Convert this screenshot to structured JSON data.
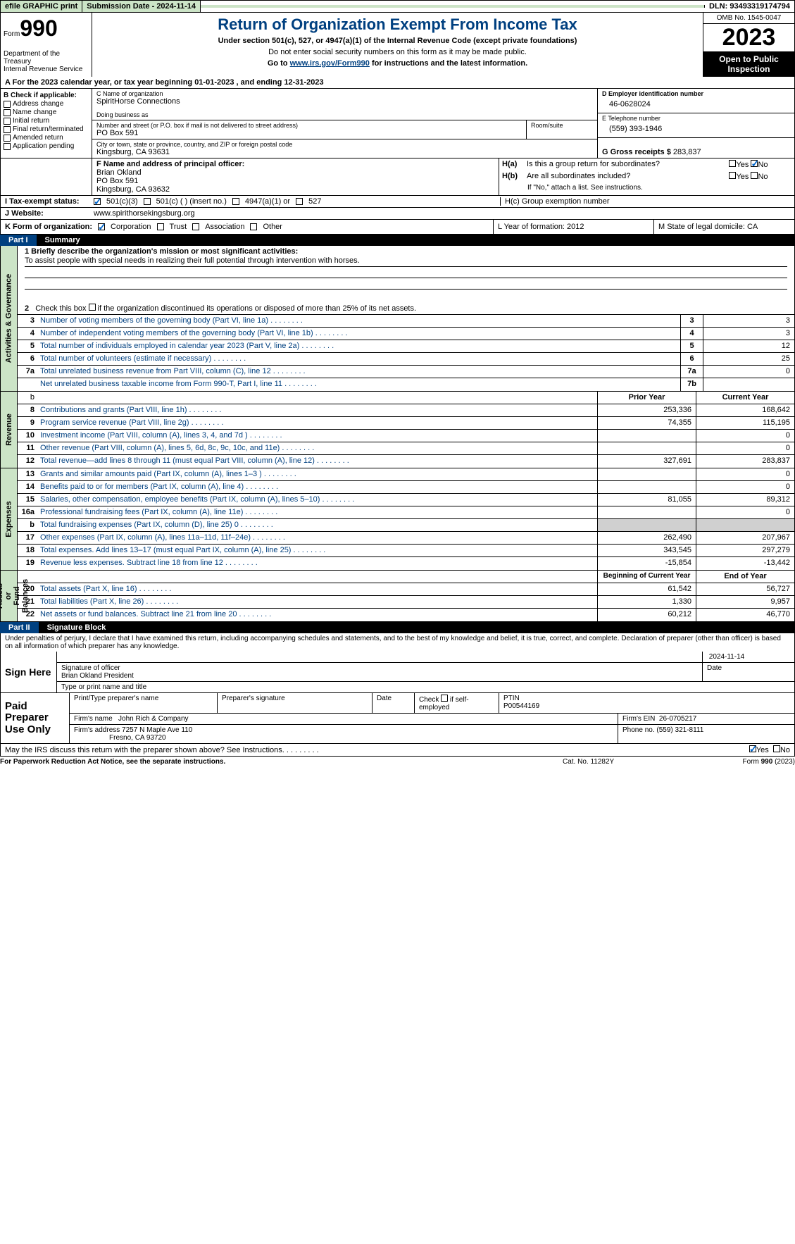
{
  "topbar": {
    "efile": "efile GRAPHIC print",
    "submission": "Submission Date - 2024-11-14",
    "dln": "DLN: 93493319174794"
  },
  "header": {
    "form_label": "Form",
    "form_no": "990",
    "dept": "Department of the Treasury\nInternal Revenue Service",
    "title": "Return of Organization Exempt From Income Tax",
    "sub1": "Under section 501(c), 527, or 4947(a)(1) of the Internal Revenue Code (except private foundations)",
    "sub2": "Do not enter social security numbers on this form as it may be made public.",
    "sub3_pre": "Go to ",
    "sub3_link": "www.irs.gov/Form990",
    "sub3_post": " for instructions and the latest information.",
    "omb": "OMB No. 1545-0047",
    "year": "2023",
    "open": "Open to Public Inspection"
  },
  "rowA": "A For the 2023 calendar year, or tax year beginning 01-01-2023    , and ending 12-31-2023",
  "colB": {
    "hdr": "B Check if applicable:",
    "opts": [
      "Address change",
      "Name change",
      "Initial return",
      "Final return/terminated",
      "Amended return",
      "Application pending"
    ]
  },
  "boxC": {
    "name_lbl": "C Name of organization",
    "name": "SpiritHorse Connections",
    "dba_lbl": "Doing business as",
    "addr_lbl": "Number and street (or P.O. box if mail is not delivered to street address)",
    "room_lbl": "Room/suite",
    "addr": "PO Box 591",
    "city_lbl": "City or town, state or province, country, and ZIP or foreign postal code",
    "city": "Kingsburg, CA   93631"
  },
  "boxD": {
    "lbl": "D Employer identification number",
    "val": "46-0628024"
  },
  "boxE": {
    "lbl": "E Telephone number",
    "val": "(559) 393-1946"
  },
  "boxG": {
    "lbl": "G Gross receipts $",
    "val": "283,837"
  },
  "officer": {
    "f_lbl": "F  Name and address of principal officer:",
    "f_val": "Brian Okland\nPO Box 591\nKingsburg, CA  93632",
    "ha": "H(a)  Is this a group return for subordinates?",
    "hb": "H(b)  Are all subordinates included?",
    "hb_note": "If \"No,\" attach a list. See instructions.",
    "hc": "H(c)  Group exemption number"
  },
  "taxexempt": {
    "lbl": "I  Tax-exempt status:",
    "opt1": "501(c)(3)",
    "opt2": "501(c) (  ) (insert no.)",
    "opt3": "4947(a)(1) or",
    "opt4": "527"
  },
  "website": {
    "lbl": "J  Website:",
    "val": "www.spirithorsekingsburg.org"
  },
  "rowK": {
    "lbl": "K Form of organization:",
    "opts": [
      "Corporation",
      "Trust",
      "Association",
      "Other"
    ],
    "L": "L Year of formation: 2012",
    "M": "M State of legal domicile: CA"
  },
  "part1": {
    "num": "Part I",
    "title": "Summary"
  },
  "mission": {
    "lbl": "1   Briefly describe the organization's mission or most significant activities:",
    "text": "To assist people with special needs in realizing their full potential through intervention with horses."
  },
  "line2": "2   Check this box      if the organization discontinued its operations or disposed of more than 25% of its net assets.",
  "gov_rows": [
    {
      "n": "3",
      "d": "Number of voting members of the governing body (Part VI, line 1a)",
      "bn": "3",
      "v": "3"
    },
    {
      "n": "4",
      "d": "Number of independent voting members of the governing body (Part VI, line 1b)",
      "bn": "4",
      "v": "3"
    },
    {
      "n": "5",
      "d": "Total number of individuals employed in calendar year 2023 (Part V, line 2a)",
      "bn": "5",
      "v": "12"
    },
    {
      "n": "6",
      "d": "Total number of volunteers (estimate if necessary)",
      "bn": "6",
      "v": "25"
    },
    {
      "n": "7a",
      "d": "Total unrelated business revenue from Part VIII, column (C), line 12",
      "bn": "7a",
      "v": "0"
    },
    {
      "n": "",
      "d": "Net unrelated business taxable income from Form 990-T, Part I, line 11",
      "bn": "7b",
      "v": ""
    }
  ],
  "hdr_b": {
    "py": "Prior Year",
    "cy": "Current Year"
  },
  "rev_rows": [
    {
      "n": "8",
      "d": "Contributions and grants (Part VIII, line 1h)",
      "py": "253,336",
      "cy": "168,642"
    },
    {
      "n": "9",
      "d": "Program service revenue (Part VIII, line 2g)",
      "py": "74,355",
      "cy": "115,195"
    },
    {
      "n": "10",
      "d": "Investment income (Part VIII, column (A), lines 3, 4, and 7d )",
      "py": "",
      "cy": "0"
    },
    {
      "n": "11",
      "d": "Other revenue (Part VIII, column (A), lines 5, 6d, 8c, 9c, 10c, and 11e)",
      "py": "",
      "cy": "0"
    },
    {
      "n": "12",
      "d": "Total revenue—add lines 8 through 11 (must equal Part VIII, column (A), line 12)",
      "py": "327,691",
      "cy": "283,837"
    }
  ],
  "exp_rows": [
    {
      "n": "13",
      "d": "Grants and similar amounts paid (Part IX, column (A), lines 1–3 )",
      "py": "",
      "cy": "0"
    },
    {
      "n": "14",
      "d": "Benefits paid to or for members (Part IX, column (A), line 4)",
      "py": "",
      "cy": "0"
    },
    {
      "n": "15",
      "d": "Salaries, other compensation, employee benefits (Part IX, column (A), lines 5–10)",
      "py": "81,055",
      "cy": "89,312"
    },
    {
      "n": "16a",
      "d": "Professional fundraising fees (Part IX, column (A), line 11e)",
      "py": "",
      "cy": "0"
    },
    {
      "n": "b",
      "d": "Total fundraising expenses (Part IX, column (D), line 25) 0",
      "py": "GRAY",
      "cy": "GRAY"
    },
    {
      "n": "17",
      "d": "Other expenses (Part IX, column (A), lines 11a–11d, 11f–24e)",
      "py": "262,490",
      "cy": "207,967"
    },
    {
      "n": "18",
      "d": "Total expenses. Add lines 13–17 (must equal Part IX, column (A), line 25)",
      "py": "343,545",
      "cy": "297,279"
    },
    {
      "n": "19",
      "d": "Revenue less expenses. Subtract line 18 from line 12",
      "py": "-15,854",
      "cy": "-13,442"
    }
  ],
  "net_hdr": {
    "py": "Beginning of Current Year",
    "cy": "End of Year"
  },
  "net_rows": [
    {
      "n": "20",
      "d": "Total assets (Part X, line 16)",
      "py": "61,542",
      "cy": "56,727"
    },
    {
      "n": "21",
      "d": "Total liabilities (Part X, line 26)",
      "py": "1,330",
      "cy": "9,957"
    },
    {
      "n": "22",
      "d": "Net assets or fund balances. Subtract line 21 from line 20",
      "py": "60,212",
      "cy": "46,770"
    }
  ],
  "vtabs": {
    "gov": "Activities & Governance",
    "rev": "Revenue",
    "exp": "Expenses",
    "net": "Net Assets or\nFund Balances"
  },
  "part2": {
    "num": "Part II",
    "title": "Signature Block"
  },
  "penalties": "Under penalties of perjury, I declare that I have examined this return, including accompanying schedules and statements, and to the best of my knowledge and belief, it is true, correct, and complete. Declaration of preparer (other than officer) is based on all information of which preparer has any knowledge.",
  "sign": {
    "here": "Sign Here",
    "date": "2024-11-14",
    "sig_lbl": "Signature of officer",
    "name": "Brian Okland  President",
    "name_lbl": "Type or print name and title",
    "date_lbl": "Date"
  },
  "prep": {
    "lbl": "Paid Preparer Use Only",
    "h1": "Print/Type preparer's name",
    "h2": "Preparer's signature",
    "h3": "Date",
    "h4_pre": "Check",
    "h4_post": "if self-employed",
    "h5": "PTIN",
    "ptin": "P00544169",
    "firm_lbl": "Firm's name",
    "firm": "John Rich & Company",
    "ein_lbl": "Firm's EIN",
    "ein": "26-0705217",
    "addr_lbl": "Firm's address",
    "addr1": "7257 N Maple Ave 110",
    "addr2": "Fresno, CA   93720",
    "phone_lbl": "Phone no.",
    "phone": "(559) 321-8111"
  },
  "discuss": "May the IRS discuss this return with the preparer shown above? See Instructions.",
  "footer": {
    "left": "For Paperwork Reduction Act Notice, see the separate instructions.",
    "mid": "Cat. No. 11282Y",
    "right_pre": "Form ",
    "right_b": "990",
    "right_post": " (2023)"
  },
  "yes": "Yes",
  "no": "No"
}
